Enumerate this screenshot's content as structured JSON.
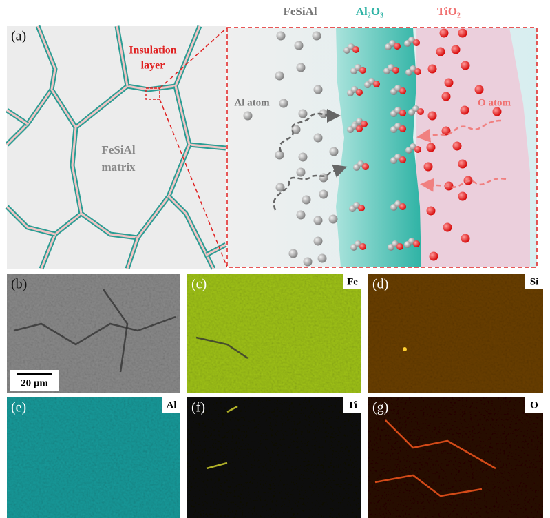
{
  "header": {
    "fesial": "FeSiAl",
    "al2o3": "Al₂O₃",
    "tio2": "TiO₂"
  },
  "panel_a": {
    "label": "(a)",
    "insulation": [
      "Insulation",
      "layer"
    ],
    "matrix": [
      "FeSiAl",
      "matrix"
    ],
    "al_atom": "Al atom",
    "o_atom": "O atom"
  },
  "panels": [
    {
      "label": "(b)",
      "scale_bar": "20 μm"
    },
    {
      "label": "(c)",
      "element": "Fe"
    },
    {
      "label": "(d)",
      "element": "Si"
    },
    {
      "label": "(e)",
      "element": "Al"
    },
    {
      "label": "(f)",
      "element": "Ti"
    },
    {
      "label": "(g)",
      "element": "O"
    }
  ]
}
